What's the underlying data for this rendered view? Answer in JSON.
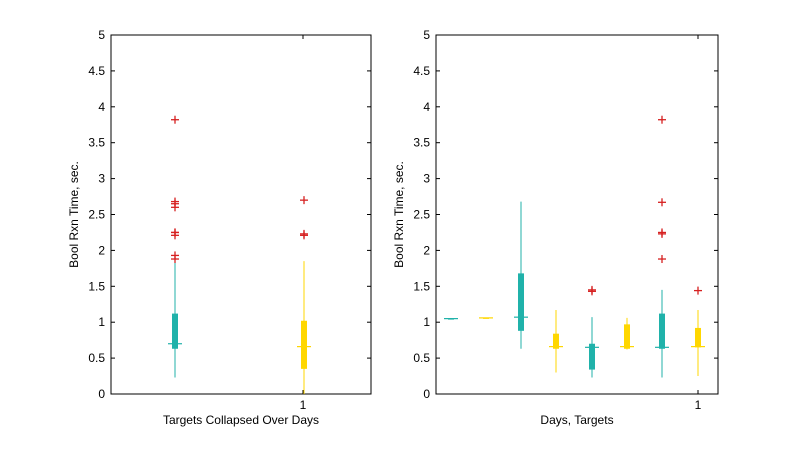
{
  "chart_data": [
    {
      "type": "box",
      "title": "",
      "xlabel": "Targets Collapsed Over Days",
      "ylabel": "Bool Rxn Time, sec.",
      "ylim": [
        0,
        5
      ],
      "yticks": [
        "0",
        "0.5",
        "1",
        "1.5",
        "2",
        "2.5",
        "3",
        "3.5",
        "4",
        "4.5",
        "5"
      ],
      "xtick_labels": [
        "1"
      ],
      "grid": false,
      "boxes": [
        {
          "color": "#20B2AA",
          "min": 0.23,
          "q1": 0.63,
          "median": 0.7,
          "q3": 1.12,
          "max": 1.85,
          "outliers": [
            1.88,
            1.93,
            2.21,
            2.25,
            2.25,
            2.6,
            2.65,
            2.68,
            3.82
          ]
        },
        {
          "color": "#FFD700",
          "min": 0.0,
          "q1": 0.35,
          "median": 0.66,
          "q3": 1.02,
          "max": 1.85,
          "outliers": [
            2.21,
            2.23,
            2.7
          ]
        }
      ]
    },
    {
      "type": "box",
      "title": "",
      "xlabel": "Days, Targets",
      "ylabel": "Bool Rxn Time, sec.",
      "ylim": [
        0,
        5
      ],
      "yticks": [
        "0",
        "0.5",
        "1",
        "1.5",
        "2",
        "2.5",
        "3",
        "3.5",
        "4",
        "4.5",
        "5"
      ],
      "xtick_labels": [
        "1"
      ],
      "grid": false,
      "boxes": [
        {
          "color": "#20B2AA",
          "min": 1.05,
          "q1": 1.05,
          "median": 1.05,
          "q3": 1.05,
          "max": 1.05,
          "outliers": []
        },
        {
          "color": "#FFD700",
          "min": 1.06,
          "q1": 1.06,
          "median": 1.06,
          "q3": 1.06,
          "max": 1.06,
          "outliers": []
        },
        {
          "color": "#20B2AA",
          "min": 0.63,
          "q1": 0.88,
          "median": 1.07,
          "q3": 1.68,
          "max": 2.68,
          "outliers": []
        },
        {
          "color": "#FFD700",
          "min": 0.3,
          "q1": 0.63,
          "median": 0.66,
          "q3": 0.84,
          "max": 1.17,
          "outliers": []
        },
        {
          "color": "#20B2AA",
          "min": 0.23,
          "q1": 0.34,
          "median": 0.65,
          "q3": 0.7,
          "max": 1.07,
          "outliers": [
            1.43,
            1.45
          ]
        },
        {
          "color": "#FFD700",
          "min": 0.62,
          "q1": 0.63,
          "median": 0.66,
          "q3": 0.97,
          "max": 1.06,
          "outliers": []
        },
        {
          "color": "#20B2AA",
          "min": 0.23,
          "q1": 0.63,
          "median": 0.65,
          "q3": 1.12,
          "max": 1.45,
          "outliers": [
            1.88,
            2.23,
            2.25,
            2.67,
            3.82
          ]
        },
        {
          "color": "#FFD700",
          "min": 0.25,
          "q1": 0.65,
          "median": 0.66,
          "q3": 0.92,
          "max": 1.17,
          "outliers": [
            1.44
          ]
        }
      ]
    }
  ]
}
